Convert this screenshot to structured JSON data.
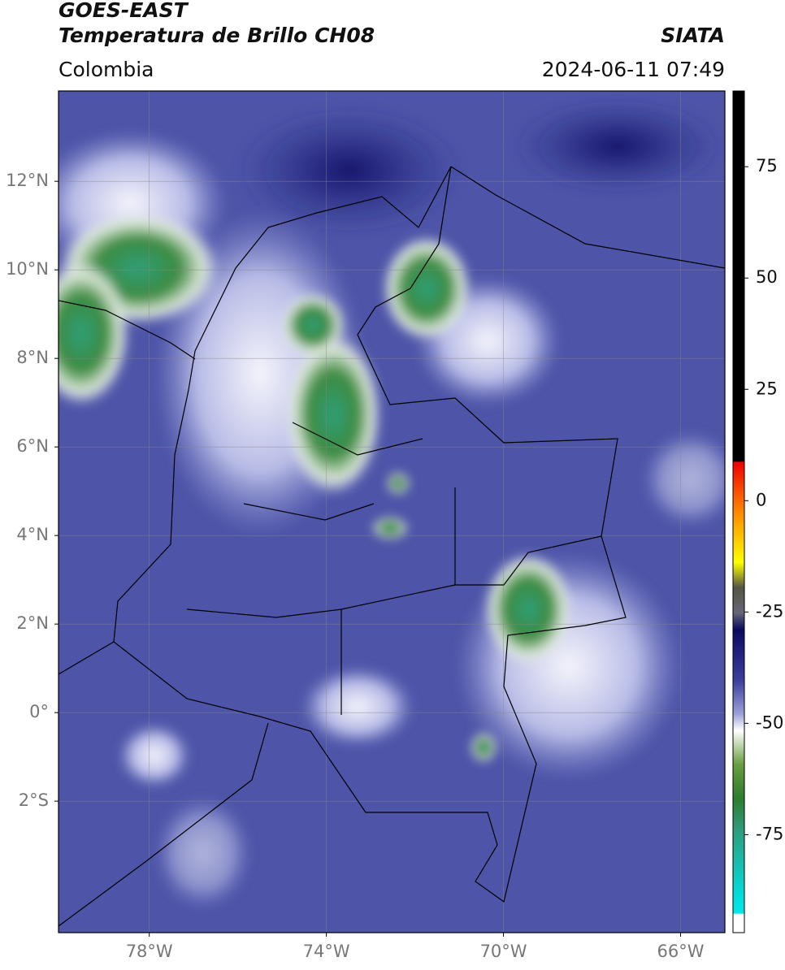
{
  "header": {
    "title": "GOES-EAST",
    "subtitle": "Temperatura de Brillo CH08",
    "source": "SIATA",
    "region": "Colombia",
    "datetime": "2024-06-11 07:49"
  },
  "map": {
    "xlim": [
      -80.05,
      -65.0
    ],
    "ylim": [
      -4.97,
      14.04
    ],
    "xticks": [
      {
        "value": -78,
        "label": "78°W"
      },
      {
        "value": -74,
        "label": "74°W"
      },
      {
        "value": -70,
        "label": "70°W"
      },
      {
        "value": -66,
        "label": "66°W"
      }
    ],
    "yticks": [
      {
        "value": 12,
        "label": "12°N"
      },
      {
        "value": 10,
        "label": "10°N"
      },
      {
        "value": 8,
        "label": "8°N"
      },
      {
        "value": 6,
        "label": "6°N"
      },
      {
        "value": 4,
        "label": "4°N"
      },
      {
        "value": 2,
        "label": "2°N"
      },
      {
        "value": 0,
        "label": "0°"
      },
      {
        "value": -2,
        "label": "2°S"
      }
    ],
    "grid": true
  },
  "colorbar": {
    "lim": [
      -97,
      92
    ],
    "ticks": [
      75,
      50,
      25,
      0,
      -25,
      -50,
      -75
    ]
  }
}
